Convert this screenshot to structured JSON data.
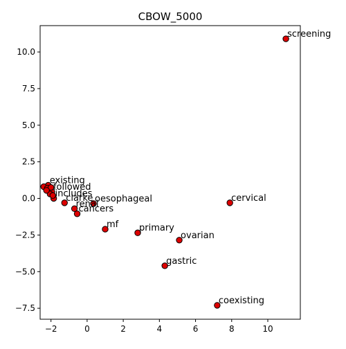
{
  "chart_data": {
    "type": "scatter",
    "title": "CBOW_5000",
    "xlabel": "",
    "ylabel": "",
    "xlim": [
      -2.6,
      11.8
    ],
    "ylim": [
      -8.25,
      11.8
    ],
    "xticks": [
      -2,
      0,
      2,
      4,
      6,
      8,
      10
    ],
    "yticks": [
      -7.5,
      -5.0,
      -2.5,
      0.0,
      2.5,
      5.0,
      7.5,
      10.0
    ],
    "xtick_labels": [
      "−2",
      "0",
      "2",
      "4",
      "6",
      "8",
      "10"
    ],
    "ytick_labels": [
      "−7.5",
      "−5.0",
      "−2.5",
      "0.0",
      "2.5",
      "5.0",
      "7.5",
      "10.0"
    ],
    "grid": false,
    "marker_face_color": "#dd0000",
    "marker_edge_color": "#000000",
    "points": [
      {
        "label": "screening",
        "x": 11.0,
        "y": 10.9
      },
      {
        "label": "cervical",
        "x": 7.9,
        "y": -0.3
      },
      {
        "label": "ovarian",
        "x": 5.1,
        "y": -2.85
      },
      {
        "label": "primary",
        "x": 2.8,
        "y": -2.35
      },
      {
        "label": "mf",
        "x": 1.0,
        "y": -2.1
      },
      {
        "label": "gastric",
        "x": 4.3,
        "y": -4.6
      },
      {
        "label": "coexisting",
        "x": 7.2,
        "y": -7.3
      },
      {
        "label": "oesophageal",
        "x": 0.35,
        "y": -0.35
      },
      {
        "label": "cancers",
        "x": -0.55,
        "y": -1.05
      },
      {
        "label": "renal",
        "x": -0.7,
        "y": -0.7
      },
      {
        "label": "clarke",
        "x": -1.25,
        "y": -0.3
      },
      {
        "label": "includes",
        "x": -1.85,
        "y": 0.0
      },
      {
        "label": "followed",
        "x": -1.95,
        "y": 0.45
      },
      {
        "label": "existing",
        "x": -2.15,
        "y": 0.9
      },
      {
        "label": "",
        "x": -2.4,
        "y": 0.8
      },
      {
        "label": "",
        "x": -2.2,
        "y": 0.7
      },
      {
        "label": "",
        "x": -2.0,
        "y": 0.75
      },
      {
        "label": "",
        "x": -2.05,
        "y": 0.3
      },
      {
        "label": "",
        "x": -1.9,
        "y": 0.2
      },
      {
        "label": "",
        "x": -2.25,
        "y": 0.55
      }
    ]
  }
}
